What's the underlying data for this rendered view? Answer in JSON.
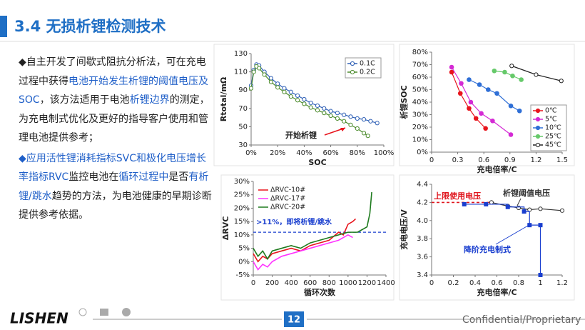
{
  "slide": {
    "title": "3.4 无损析锂检测技术",
    "paragraphs": [
      [
        {
          "text": "◆自主开发了间歇式阻抗分析法，可在充电过程中获得",
          "highlight": false
        },
        {
          "text": "电池开始发生析锂的阈值电压及SOC",
          "highlight": true
        },
        {
          "text": "，该方法适用于电池",
          "highlight": false
        },
        {
          "text": "析锂边界",
          "highlight": true
        },
        {
          "text": "的测定，为充电制式优化及更好的指导客户使用和管理电池提供参考；",
          "highlight": false
        }
      ],
      [
        {
          "text": "◆应用活性锂消耗指标SVC和极化电压增长率指标RVC",
          "highlight": true
        },
        {
          "text": "监控电池在",
          "highlight": false
        },
        {
          "text": "循环过程中",
          "highlight": true
        },
        {
          "text": "是否",
          "highlight": false
        },
        {
          "text": "有析锂/跳水",
          "highlight": true
        },
        {
          "text": "趋势的方法，为电池健康的早期诊断提供参考依据。",
          "highlight": false
        }
      ]
    ]
  },
  "footer": {
    "logo": "LISHEN",
    "page": "12",
    "confidential": "Confidential/Proprietary"
  },
  "chart_data": [
    {
      "type": "line",
      "ylabel": "Rtotal/mΩ",
      "xlabel": "SOC",
      "annotation": "开始析锂",
      "legend": "upper right",
      "xlim": [
        0,
        100
      ],
      "xticks": [
        {
          "value": 0,
          "label": "0%"
        },
        {
          "value": 20,
          "label": "20%"
        },
        {
          "value": 40,
          "label": "40%"
        },
        {
          "value": 60,
          "label": "60%"
        },
        {
          "value": 80,
          "label": "80%"
        },
        {
          "value": 100,
          "label": "100%"
        }
      ],
      "ylim": [
        30,
        130
      ],
      "yticks": [
        30,
        50,
        70,
        90,
        110,
        130
      ],
      "series": [
        {
          "name": "0.1C",
          "color": "#2e5fb5",
          "marker": "circle",
          "open": true,
          "x": [
            0,
            2,
            4,
            6,
            10,
            15,
            20,
            25,
            30,
            35,
            40,
            45,
            50,
            55,
            60,
            65,
            70,
            75,
            80,
            85,
            90,
            95
          ],
          "values": [
            95,
            112,
            118,
            117,
            110,
            103,
            97,
            92,
            88,
            84,
            80,
            76,
            73,
            70,
            67,
            65,
            63,
            61,
            59,
            58,
            56,
            54
          ]
        },
        {
          "name": "0.2C",
          "color": "#4a8a2a",
          "marker": "circle",
          "open": true,
          "x": [
            0,
            2,
            4,
            6,
            10,
            15,
            20,
            25,
            30,
            35,
            40,
            45,
            50,
            55,
            60,
            65,
            70,
            75,
            80,
            85,
            88
          ],
          "values": [
            92,
            110,
            116,
            114,
            107,
            99,
            93,
            88,
            83,
            79,
            75,
            71,
            68,
            65,
            62,
            59,
            56,
            52,
            48,
            43,
            40
          ]
        }
      ]
    },
    {
      "type": "line",
      "ylabel": "析锂SOC",
      "xlabel": "充电倍率/C",
      "legend": "lower right",
      "xlim": [
        0,
        1.5
      ],
      "xticks": [
        0,
        0.3,
        0.6,
        0.9,
        1.2,
        1.5
      ],
      "ylim": [
        0,
        80
      ],
      "yticks": [
        {
          "value": 0,
          "label": "0%"
        },
        {
          "value": 10,
          "label": "10%"
        },
        {
          "value": 20,
          "label": "20%"
        },
        {
          "value": 30,
          "label": "30%"
        },
        {
          "value": 40,
          "label": "40%"
        },
        {
          "value": 50,
          "label": "50%"
        },
        {
          "value": 60,
          "label": "60%"
        },
        {
          "value": 70,
          "label": "70%"
        },
        {
          "value": 80,
          "label": "80%"
        }
      ],
      "series": [
        {
          "name": "0℃",
          "color": "#e8141c",
          "marker": "circle",
          "open": false,
          "x": [
            0.23,
            0.33,
            0.43,
            0.51,
            0.62
          ],
          "values": [
            64,
            47,
            35,
            27,
            19
          ]
        },
        {
          "name": "5℃",
          "color": "#d42ad4",
          "marker": "circle",
          "open": false,
          "x": [
            0.23,
            0.34,
            0.45,
            0.57,
            0.7,
            0.91
          ],
          "values": [
            68,
            55,
            40,
            31,
            25,
            14
          ]
        },
        {
          "name": "10℃",
          "color": "#2f6fd6",
          "marker": "circle",
          "open": false,
          "x": [
            0.43,
            0.55,
            0.65,
            0.75,
            0.91,
            1.01
          ],
          "values": [
            58,
            54,
            50,
            47,
            37,
            33
          ]
        },
        {
          "name": "25℃",
          "color": "#66c96a",
          "marker": "circle",
          "open": false,
          "x": [
            0.72,
            0.84,
            0.93,
            1.03
          ],
          "values": [
            65,
            64,
            61,
            58
          ]
        },
        {
          "name": "45℃",
          "color": "#222222",
          "marker": "circle",
          "open": true,
          "x": [
            0.92,
            1.2,
            1.49
          ],
          "values": [
            69,
            62,
            57
          ]
        }
      ]
    },
    {
      "type": "line",
      "ylabel": "ΔRVC",
      "xlabel": "循环次数",
      "legend": "upper left",
      "threshold": 11,
      "annotation": ">11%，即将析锂/跳水",
      "xlim": [
        0,
        1400
      ],
      "xticks": [
        0,
        200,
        400,
        600,
        800,
        1000,
        1200,
        1400
      ],
      "ylim": [
        -5,
        30
      ],
      "yticks": [
        {
          "value": -5,
          "label": "-5%"
        },
        {
          "value": 0,
          "label": "0%"
        },
        {
          "value": 5,
          "label": "5%"
        },
        {
          "value": 10,
          "label": "10%"
        },
        {
          "value": 15,
          "label": "15%"
        },
        {
          "value": 20,
          "label": "20%"
        },
        {
          "value": 25,
          "label": "25%"
        },
        {
          "value": 30,
          "label": "30%"
        }
      ],
      "series": [
        {
          "name": "ΔRVC-10#",
          "color": "#e8141c",
          "x": [
            0,
            50,
            100,
            150,
            200,
            300,
            400,
            500,
            600,
            700,
            800,
            900,
            950,
            1000,
            1050,
            1080
          ],
          "values": [
            3,
            0,
            2,
            1,
            3,
            4,
            5,
            4,
            6,
            7,
            8,
            11,
            10,
            14,
            15,
            16
          ]
        },
        {
          "name": "ΔRVC-17#",
          "color": "#ff33ff",
          "x": [
            0,
            50,
            100,
            150,
            200,
            300,
            400,
            500,
            600,
            700,
            800,
            900,
            1000,
            1050
          ],
          "values": [
            0,
            -3,
            -1,
            -2,
            0,
            2,
            3,
            4,
            5,
            6,
            7,
            8,
            10,
            9
          ]
        },
        {
          "name": "ΔRVC-20#",
          "color": "#1e7b1e",
          "x": [
            0,
            50,
            100,
            150,
            200,
            300,
            400,
            500,
            600,
            700,
            800,
            900,
            1000,
            1100,
            1150,
            1200,
            1230,
            1250
          ],
          "values": [
            5,
            2,
            4,
            1,
            4,
            5,
            6,
            5,
            7,
            8,
            9,
            10,
            11,
            11,
            12,
            13,
            18,
            26
          ]
        }
      ]
    },
    {
      "type": "line",
      "ylabel": "充电电压/V",
      "xlabel": "充电倍率/C",
      "legend": "inline",
      "xlim": [
        0,
        1.2
      ],
      "xticks": [
        0,
        0.2,
        0.4,
        0.6,
        0.8,
        1,
        1.2
      ],
      "ylim": [
        3.4,
        4.4
      ],
      "yticks": [
        3.4,
        3.6,
        3.8,
        {
          "value": 4,
          "label": "4.0"
        },
        4.2,
        4.4
      ],
      "series": [
        {
          "name": "上限使用电压",
          "color": "#e0141c",
          "dash": true,
          "x": [
            0,
            0.55
          ],
          "values": [
            4.2,
            4.2
          ]
        },
        {
          "name": "析锂阈值电压",
          "color": "#333333",
          "marker": "circle",
          "open": true,
          "x": [
            0.55,
            0.7,
            0.8,
            0.9,
            1,
            1.2
          ],
          "values": [
            4.2,
            4.16,
            4.14,
            4.12,
            4.13,
            4.11
          ]
        },
        {
          "name": "降阶充电制式",
          "color": "#1a3fcf",
          "marker": "square",
          "open": false,
          "step": true,
          "x": [
            0.3,
            0.5,
            0.7,
            0.85,
            0.9,
            1,
            1
          ],
          "values": [
            4.18,
            4.18,
            4.15,
            4.1,
            3.95,
            3.95,
            3.4
          ]
        }
      ]
    }
  ]
}
